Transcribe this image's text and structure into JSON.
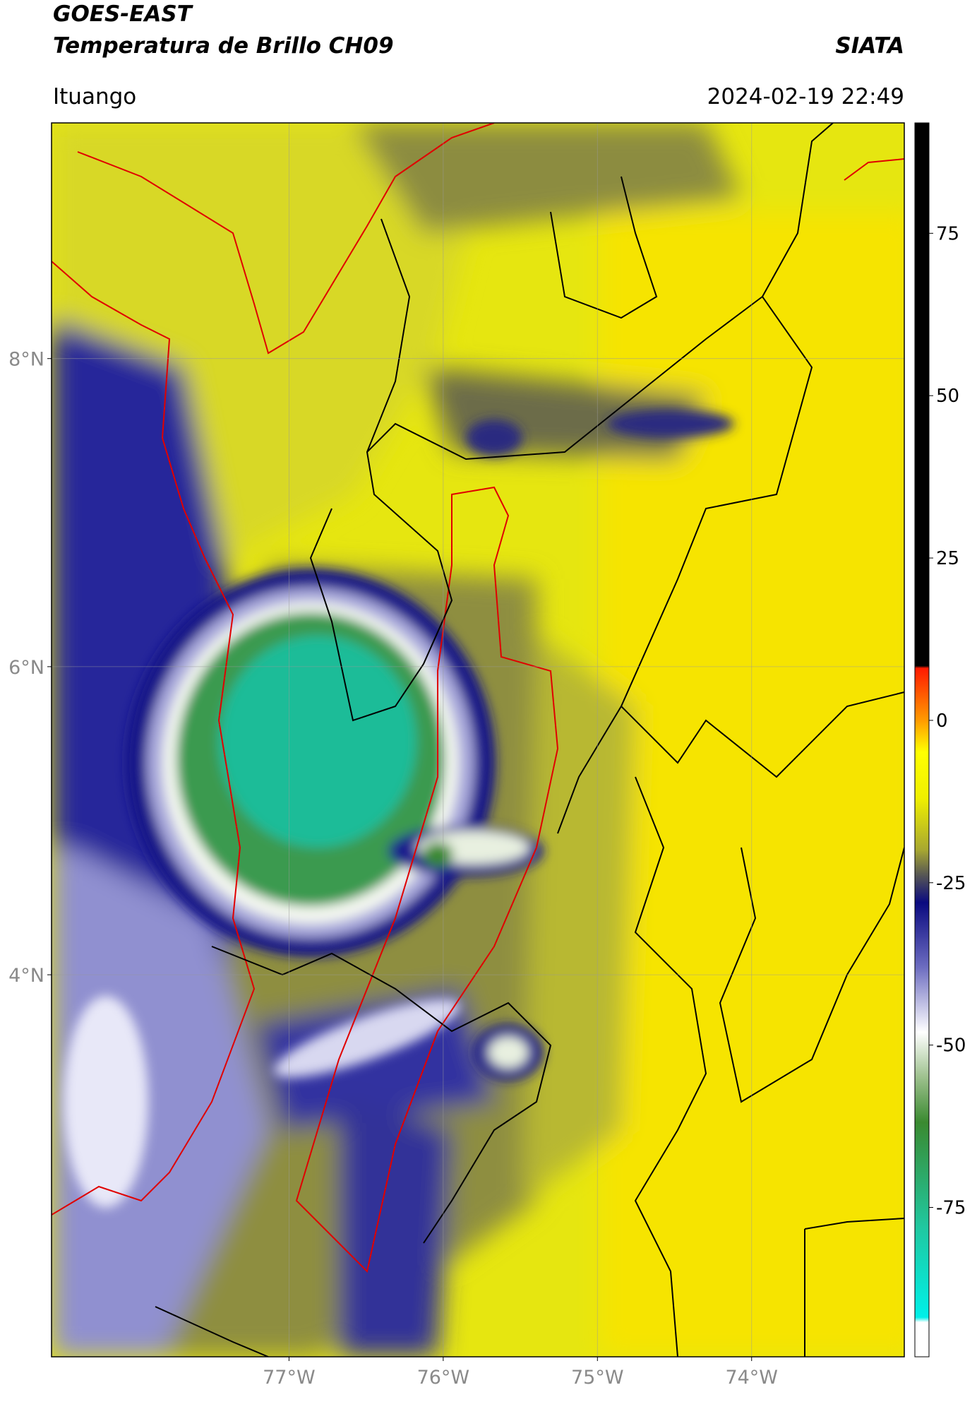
{
  "header": {
    "title": "GOES-EAST",
    "subtitle": "Temperatura de Brillo CH09",
    "source": "SIATA",
    "location": "Ituango",
    "timestamp": "2024-02-19 22:49"
  },
  "map": {
    "lonlim": [
      -78.54,
      -73.01
    ],
    "latlim": [
      1.52,
      9.53
    ],
    "lat_ticks": [
      {
        "value": 8,
        "label": "8°N"
      },
      {
        "value": 6,
        "label": "6°N"
      },
      {
        "value": 4,
        "label": "4°N"
      }
    ],
    "lon_ticks": [
      {
        "value": -77,
        "label": "77°W"
      },
      {
        "value": -76,
        "label": "76°W"
      },
      {
        "value": -75,
        "label": "75°W"
      },
      {
        "value": -74,
        "label": "74°W"
      }
    ],
    "grid": true
  },
  "colorbar": {
    "lim": [
      -98,
      92
    ],
    "ticks": [
      75,
      50,
      25,
      0,
      -25,
      -50,
      -75
    ]
  }
}
